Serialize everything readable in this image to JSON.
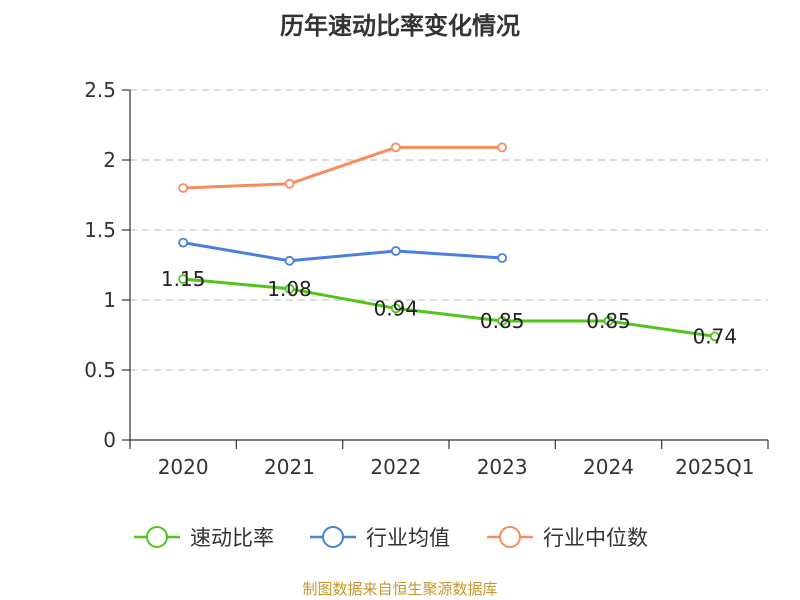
{
  "title": "历年速动比率变化情况",
  "source": "制图数据来自恒生聚源数据库",
  "chart_data": {
    "type": "line",
    "categories": [
      "2020",
      "2021",
      "2022",
      "2023",
      "2024",
      "2025Q1"
    ],
    "y_ticks": [
      "0",
      "0.5",
      "1",
      "1.5",
      "2",
      "2.5"
    ],
    "ylim": [
      0,
      2.5
    ],
    "grid": true,
    "legend_position": "bottom",
    "series": [
      {
        "name": "速动比率",
        "color": "#52c41a",
        "values": [
          1.15,
          1.08,
          0.94,
          0.85,
          0.85,
          0.74
        ],
        "labels": [
          "1.15",
          "1.08",
          "0.94",
          "0.85",
          "0.85",
          "0.74"
        ]
      },
      {
        "name": "行业均值",
        "color": "#4a7fdb",
        "values": [
          1.41,
          1.28,
          1.35,
          1.3,
          null,
          null
        ]
      },
      {
        "name": "行业中位数",
        "color": "#f58d5c",
        "values": [
          1.8,
          1.83,
          2.09,
          2.09,
          null,
          null
        ]
      }
    ]
  }
}
